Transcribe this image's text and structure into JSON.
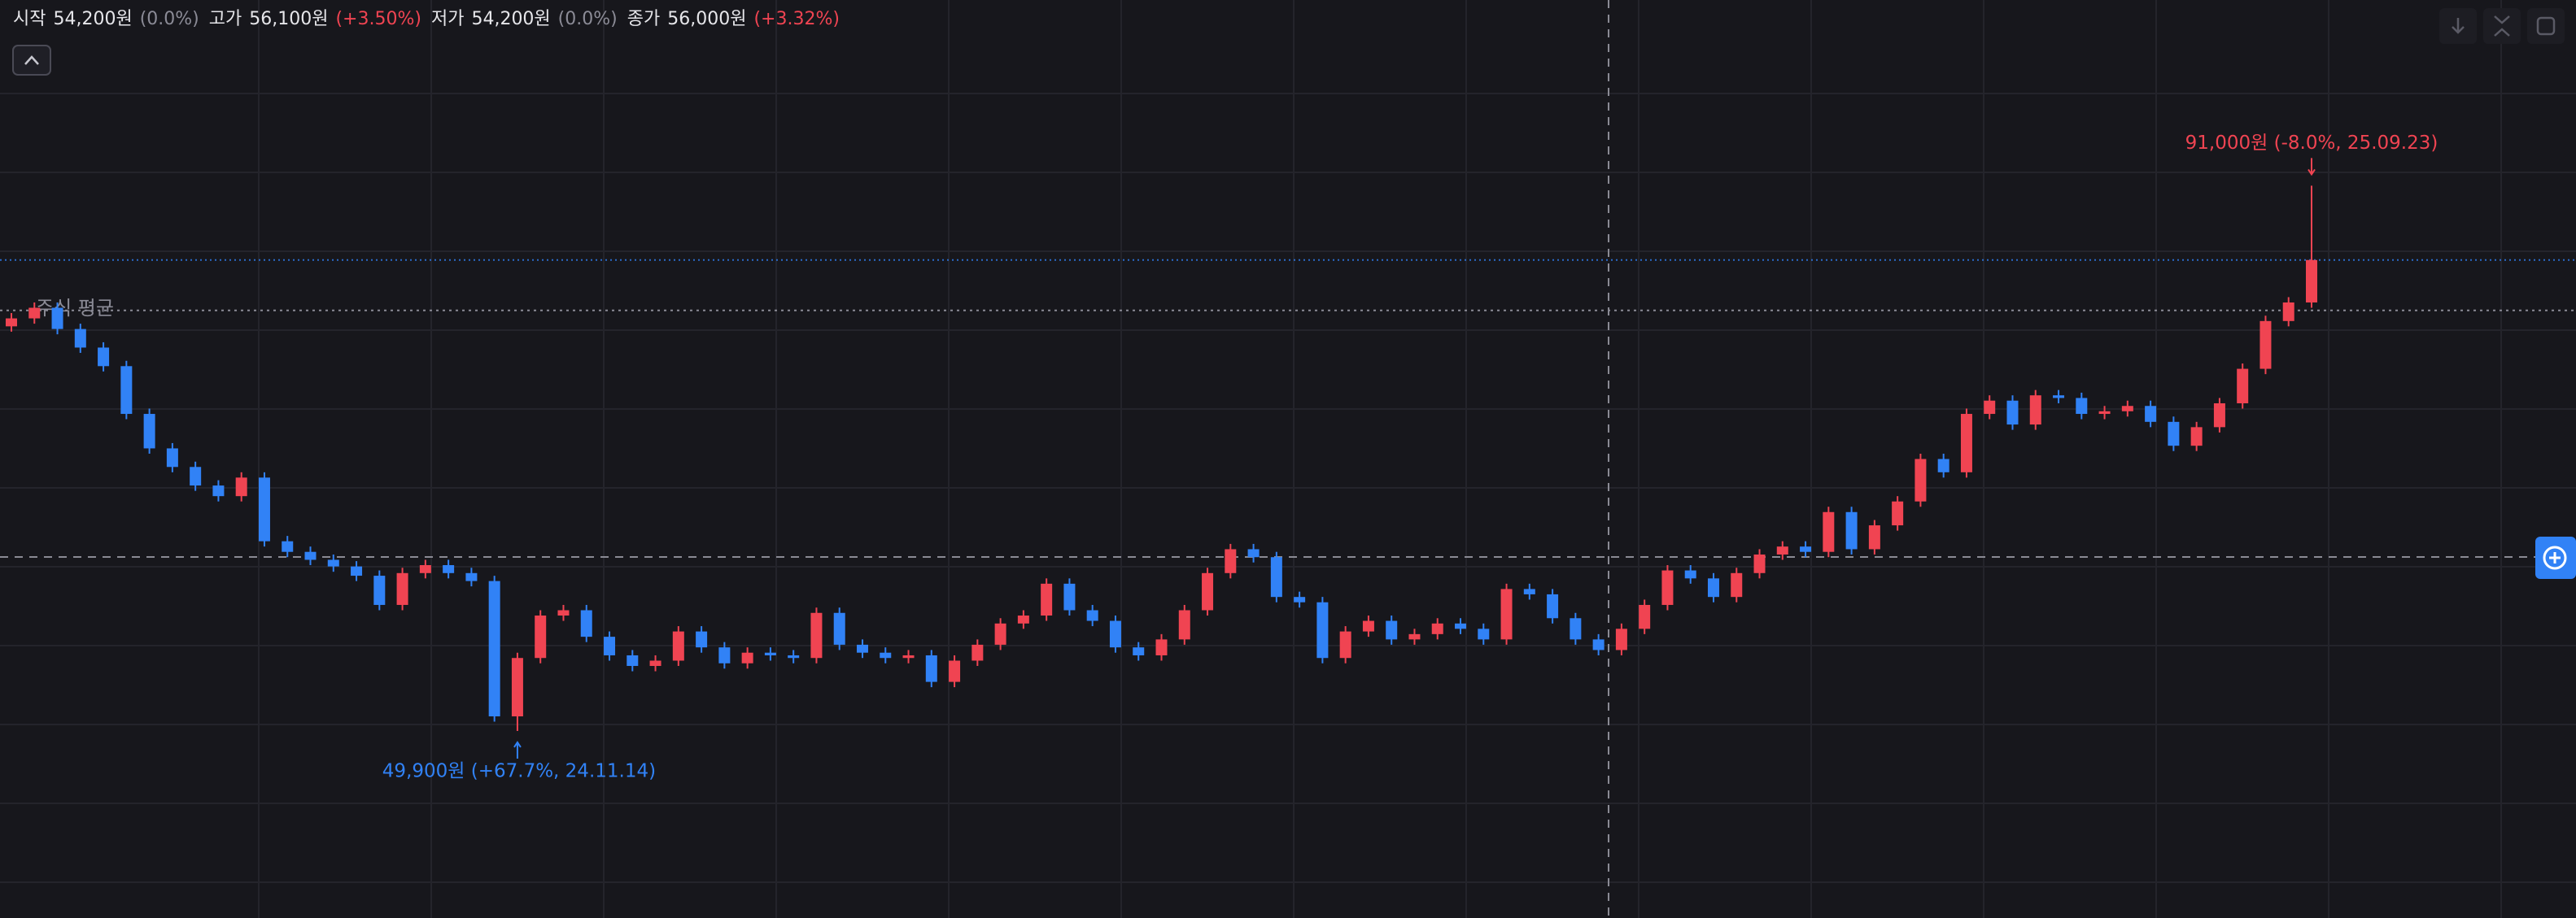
{
  "header": {
    "items": [
      {
        "label": "시작",
        "value": "54,200원",
        "change": "(0.0%)",
        "tone": "flat"
      },
      {
        "label": "고가",
        "value": "56,100원",
        "change": "(+3.50%)",
        "tone": "up"
      },
      {
        "label": "저가",
        "value": "54,200원",
        "change": "(0.0%)",
        "tone": "flat"
      },
      {
        "label": "종가",
        "value": "56,000원",
        "change": "(+3.32%)",
        "tone": "up"
      }
    ]
  },
  "chart_data": {
    "type": "candlestick",
    "up_color": "#f04452",
    "down_color": "#3182f6",
    "ylim": [
      35800,
      105000
    ],
    "open": [
      80400,
      81000,
      81800,
      80200,
      78800,
      77400,
      73800,
      71200,
      69800,
      68400,
      67600,
      69000,
      64200,
      63400,
      62800,
      62300,
      61600,
      59400,
      61800,
      62400,
      61800,
      61200,
      51000,
      55400,
      58600,
      59000,
      57000,
      55600,
      54800,
      55200,
      57400,
      56200,
      55000,
      55800,
      55600,
      55400,
      58800,
      56400,
      55800,
      55400,
      55600,
      53600,
      55200,
      56400,
      58000,
      58600,
      61000,
      59000,
      58200,
      56200,
      55600,
      56800,
      59000,
      61800,
      63600,
      63000,
      60000,
      59600,
      55400,
      57400,
      58200,
      56800,
      57200,
      58000,
      57600,
      56800,
      60600,
      60200,
      58400,
      56800,
      56000,
      57600,
      59400,
      62000,
      61400,
      60000,
      61800,
      63200,
      63800,
      63400,
      66400,
      63600,
      65400,
      67200,
      70400,
      69400,
      73800,
      74800,
      73000,
      75200,
      75000,
      73800,
      74000,
      74400,
      73200,
      71400,
      72800,
      74600,
      77200,
      80800,
      82200
    ],
    "high": [
      81400,
      82200,
      82200,
      80600,
      79200,
      77800,
      74200,
      71600,
      70200,
      68800,
      69400,
      69400,
      64600,
      63800,
      63200,
      62700,
      62000,
      62200,
      62800,
      62800,
      62200,
      61600,
      55800,
      59000,
      59400,
      59400,
      57400,
      56000,
      55600,
      57800,
      57800,
      56600,
      56200,
      56200,
      56000,
      59200,
      59200,
      56800,
      56200,
      56000,
      56000,
      55600,
      56800,
      58400,
      59000,
      61400,
      61400,
      59400,
      58600,
      56600,
      57200,
      59400,
      62200,
      64000,
      64000,
      63400,
      60400,
      60000,
      57800,
      58600,
      58600,
      57600,
      58400,
      58400,
      58000,
      61000,
      61000,
      60600,
      58800,
      57200,
      58000,
      59800,
      62400,
      62400,
      61800,
      62200,
      63600,
      64200,
      64200,
      66800,
      66800,
      65800,
      67600,
      70800,
      70800,
      74200,
      75200,
      75200,
      75600,
      75600,
      75400,
      74400,
      74800,
      74800,
      73600,
      73200,
      75000,
      77600,
      81200,
      82600,
      91000
    ],
    "low": [
      80000,
      80600,
      79800,
      78400,
      77000,
      73400,
      70800,
      69400,
      68000,
      67200,
      67200,
      63800,
      63000,
      62400,
      61900,
      61200,
      59000,
      59000,
      61400,
      61400,
      60800,
      50600,
      49900,
      55000,
      58200,
      56600,
      55200,
      54400,
      54400,
      54800,
      55800,
      54600,
      54600,
      55200,
      55000,
      55000,
      56000,
      55400,
      55000,
      55000,
      53200,
      53200,
      54800,
      56000,
      57600,
      58200,
      58600,
      57800,
      55800,
      55200,
      55200,
      56400,
      58600,
      61400,
      62600,
      59600,
      59200,
      55000,
      55000,
      57000,
      56400,
      56400,
      56800,
      57200,
      56400,
      56400,
      59800,
      58000,
      56400,
      55600,
      55600,
      57200,
      59000,
      61000,
      59600,
      59600,
      61400,
      62800,
      63000,
      63000,
      63200,
      63200,
      65000,
      66800,
      69000,
      69000,
      73400,
      72600,
      72600,
      74600,
      73400,
      73400,
      73600,
      72800,
      71000,
      71000,
      72400,
      74200,
      76800,
      80400,
      81800
    ],
    "close": [
      81000,
      81800,
      80200,
      78800,
      77400,
      73800,
      71200,
      69800,
      68400,
      67600,
      69000,
      64200,
      63400,
      62800,
      62300,
      61600,
      59400,
      61800,
      62400,
      61800,
      61200,
      51000,
      55400,
      58600,
      59000,
      57000,
      55600,
      54800,
      55200,
      57400,
      56200,
      55000,
      55800,
      55600,
      55400,
      58800,
      56400,
      55800,
      55400,
      55600,
      53600,
      55200,
      56400,
      58000,
      58600,
      61000,
      59000,
      58200,
      56200,
      55600,
      56800,
      59000,
      61800,
      63600,
      63000,
      60000,
      59600,
      55400,
      57400,
      58200,
      56800,
      57200,
      58000,
      57600,
      56800,
      60600,
      60200,
      58400,
      56800,
      56000,
      57600,
      59400,
      62000,
      61400,
      60000,
      61800,
      63200,
      63800,
      63400,
      66400,
      63600,
      65400,
      67200,
      70400,
      69400,
      73800,
      74800,
      73000,
      75200,
      75000,
      73800,
      74000,
      74400,
      73200,
      71400,
      72800,
      74600,
      77200,
      80800,
      82200,
      85400
    ],
    "high_annotation": "91,000원 (-8.0%, 25.09.23)",
    "low_annotation": "49,900원 (+67.7%, 24.11.14)",
    "average_line": {
      "label": "주식 평균",
      "value": 81600,
      "color": "#8b8b96"
    },
    "current_line_color": "#3182f6"
  }
}
